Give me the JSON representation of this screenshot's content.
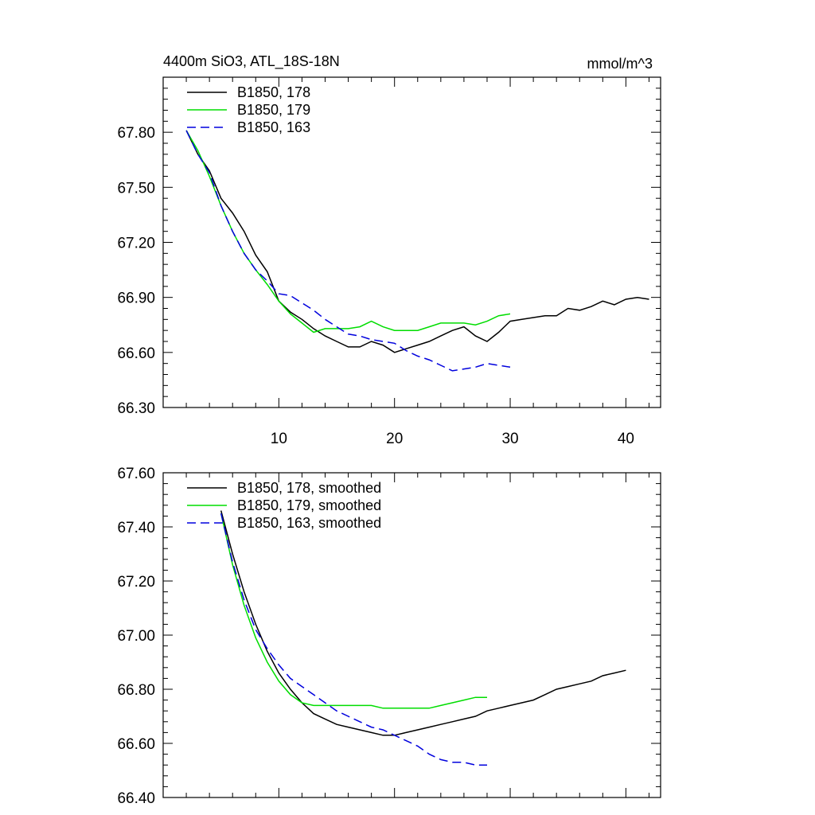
{
  "chart_data": [
    {
      "type": "line",
      "title": "4400m SiO3, ATL_18S-18N",
      "units": "mmol/m^3",
      "xlim": [
        0,
        43
      ],
      "ylim": [
        66.3,
        68.1
      ],
      "xticks": [
        10,
        20,
        30,
        40
      ],
      "xtick_labels": [
        "10",
        "20",
        "30",
        "40"
      ],
      "yticks": [
        66.3,
        66.6,
        66.9,
        67.2,
        67.5,
        67.8
      ],
      "ytick_labels": [
        "66.30",
        "66.60",
        "66.90",
        "67.20",
        "67.50",
        "67.80"
      ],
      "legend_position": "top-left",
      "series": [
        {
          "name": "B1850, 178",
          "color": "#000000",
          "dash": "solid",
          "x": [
            2,
            3,
            4,
            5,
            6,
            7,
            8,
            9,
            10,
            11,
            12,
            13,
            14,
            15,
            16,
            17,
            18,
            19,
            20,
            21,
            22,
            23,
            24,
            25,
            26,
            27,
            28,
            29,
            30,
            31,
            32,
            33,
            34,
            35,
            36,
            37,
            38,
            39,
            40,
            41,
            42
          ],
          "y": [
            67.81,
            67.68,
            67.59,
            67.44,
            67.36,
            67.26,
            67.13,
            67.04,
            66.88,
            66.82,
            66.78,
            66.73,
            66.69,
            66.66,
            66.63,
            66.63,
            66.66,
            66.64,
            66.6,
            66.62,
            66.64,
            66.66,
            66.69,
            66.72,
            66.74,
            66.69,
            66.66,
            66.71,
            66.77,
            66.78,
            66.79,
            66.8,
            66.8,
            66.84,
            66.83,
            66.85,
            66.88,
            66.86,
            66.89,
            66.9,
            66.89
          ]
        },
        {
          "name": "B1850, 179",
          "color": "#00dd00",
          "dash": "solid",
          "x": [
            2,
            3,
            4,
            5,
            6,
            7,
            8,
            9,
            10,
            11,
            12,
            13,
            14,
            15,
            16,
            17,
            18,
            19,
            20,
            21,
            22,
            23,
            24,
            25,
            26,
            27,
            28,
            29,
            30
          ],
          "y": [
            67.81,
            67.7,
            67.56,
            67.4,
            67.26,
            67.14,
            67.05,
            66.97,
            66.88,
            66.81,
            66.76,
            66.71,
            66.73,
            66.73,
            66.73,
            66.74,
            66.77,
            66.74,
            66.72,
            66.72,
            66.72,
            66.74,
            66.76,
            66.76,
            66.76,
            66.75,
            66.77,
            66.8,
            66.81
          ]
        },
        {
          "name": "B1850, 163",
          "color": "#0000dd",
          "dash": "dashed",
          "x": [
            2,
            3,
            4,
            5,
            6,
            7,
            8,
            9,
            10,
            11,
            12,
            13,
            14,
            15,
            16,
            17,
            18,
            19,
            20,
            21,
            22,
            23,
            24,
            25,
            26,
            27,
            28,
            29,
            30
          ],
          "y": [
            67.81,
            67.68,
            67.58,
            67.4,
            67.26,
            67.14,
            67.05,
            66.99,
            66.92,
            66.91,
            66.87,
            66.83,
            66.78,
            66.74,
            66.7,
            66.69,
            66.67,
            66.66,
            66.65,
            66.61,
            66.58,
            66.56,
            66.53,
            66.5,
            66.51,
            66.52,
            66.54,
            66.53,
            66.52
          ]
        }
      ]
    },
    {
      "type": "line",
      "title": "",
      "xlim": [
        0,
        43
      ],
      "ylim": [
        66.4,
        67.6
      ],
      "xticks": [
        10,
        20,
        30,
        40
      ],
      "xtick_labels": [],
      "yticks": [
        66.4,
        66.6,
        66.8,
        67.0,
        67.2,
        67.4,
        67.6
      ],
      "ytick_labels": [
        "66.40",
        "66.60",
        "66.80",
        "67.00",
        "67.20",
        "67.40",
        "67.60"
      ],
      "legend_position": "top-left",
      "series": [
        {
          "name": "B1850, 178, smoothed",
          "color": "#000000",
          "dash": "solid",
          "x": [
            5,
            6,
            7,
            8,
            9,
            10,
            11,
            12,
            13,
            14,
            15,
            16,
            17,
            18,
            19,
            20,
            21,
            22,
            23,
            24,
            25,
            26,
            27,
            28,
            29,
            30,
            31,
            32,
            33,
            34,
            35,
            36,
            37,
            38,
            39,
            40
          ],
          "y": [
            67.46,
            67.3,
            67.16,
            67.04,
            66.94,
            66.86,
            66.8,
            66.75,
            66.71,
            66.69,
            66.67,
            66.66,
            66.65,
            66.64,
            66.63,
            66.63,
            66.64,
            66.65,
            66.66,
            66.67,
            66.68,
            66.69,
            66.7,
            66.72,
            66.73,
            66.74,
            66.75,
            66.76,
            66.78,
            66.8,
            66.81,
            66.82,
            66.83,
            66.85,
            66.86,
            66.87
          ]
        },
        {
          "name": "B1850, 179, smoothed",
          "color": "#00dd00",
          "dash": "solid",
          "x": [
            5,
            6,
            7,
            8,
            9,
            10,
            11,
            12,
            13,
            14,
            15,
            16,
            17,
            18,
            19,
            20,
            21,
            22,
            23,
            24,
            25,
            26,
            27,
            28
          ],
          "y": [
            67.45,
            67.26,
            67.11,
            66.99,
            66.9,
            66.83,
            66.78,
            66.75,
            66.74,
            66.74,
            66.74,
            66.74,
            66.74,
            66.74,
            66.73,
            66.73,
            66.73,
            66.73,
            66.73,
            66.74,
            66.75,
            66.76,
            66.77,
            66.77
          ]
        },
        {
          "name": "B1850, 163, smoothed",
          "color": "#0000dd",
          "dash": "dashed",
          "x": [
            5,
            6,
            7,
            8,
            9,
            10,
            11,
            12,
            13,
            14,
            15,
            16,
            17,
            18,
            19,
            20,
            21,
            22,
            23,
            24,
            25,
            26,
            27,
            28
          ],
          "y": [
            67.45,
            67.27,
            67.13,
            67.02,
            66.95,
            66.89,
            66.84,
            66.81,
            66.78,
            66.75,
            66.72,
            66.7,
            66.68,
            66.66,
            66.65,
            66.63,
            66.61,
            66.59,
            66.56,
            66.54,
            66.53,
            66.53,
            66.52,
            66.52
          ]
        }
      ]
    }
  ]
}
